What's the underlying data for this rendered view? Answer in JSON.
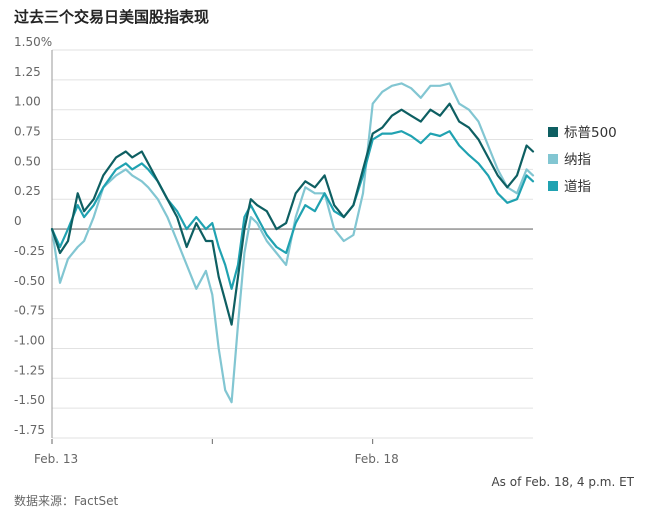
{
  "title": "过去三个交易日美国股指表现",
  "note": "As of Feb. 18, 4 p.m. ET",
  "source": "数据来源：FactSet",
  "colors": {
    "sp500": "#0e5f62",
    "nasdaq": "#82c6d2",
    "dow": "#20a2b1",
    "zero": "#888888",
    "grid": "#e2e2e2"
  },
  "chart_data": {
    "type": "line",
    "title": "过去三个交易日美国股指表现",
    "xlabel": "",
    "ylabel": "",
    "ylim": [
      -1.75,
      1.5
    ],
    "yticks": [
      {
        "value": 1.5,
        "label": "1.50%"
      },
      {
        "value": 1.25,
        "label": "1.25"
      },
      {
        "value": 1.0,
        "label": "1.00"
      },
      {
        "value": 0.75,
        "label": "0.75"
      },
      {
        "value": 0.5,
        "label": "0.50"
      },
      {
        "value": 0.25,
        "label": "0.25"
      },
      {
        "value": 0,
        "label": "0"
      },
      {
        "value": -0.25,
        "label": "-0.25"
      },
      {
        "value": -0.5,
        "label": "-0.50"
      },
      {
        "value": -0.75,
        "label": "-0.75"
      },
      {
        "value": -1.0,
        "label": "-1.00"
      },
      {
        "value": -1.25,
        "label": "-1.25"
      },
      {
        "value": -1.5,
        "label": "-1.50"
      },
      {
        "value": -1.75,
        "label": "-1.75"
      }
    ],
    "xlim": [
      0,
      3
    ],
    "xticks": [
      {
        "value": 0,
        "label": "Feb. 13"
      },
      {
        "value": 1,
        "label": ""
      },
      {
        "value": 2,
        "label": "Feb. 18"
      }
    ],
    "grid": true,
    "legend": "right",
    "series": [
      {
        "name": "标普500",
        "color_key": "sp500",
        "x": [
          0,
          0.05,
          0.1,
          0.16,
          0.2,
          0.26,
          0.32,
          0.4,
          0.46,
          0.5,
          0.56,
          0.6,
          0.66,
          0.72,
          0.78,
          0.84,
          0.9,
          0.96,
          1.0,
          1.04,
          1.08,
          1.12,
          1.16,
          1.2,
          1.24,
          1.28,
          1.34,
          1.4,
          1.46,
          1.52,
          1.58,
          1.64,
          1.7,
          1.76,
          1.82,
          1.88,
          1.94,
          2.0,
          2.06,
          2.12,
          2.18,
          2.24,
          2.3,
          2.36,
          2.42,
          2.48,
          2.54,
          2.6,
          2.66,
          2.72,
          2.78,
          2.84,
          2.9,
          2.96,
          3.0
        ],
        "y": [
          0.0,
          -0.2,
          -0.1,
          0.3,
          0.15,
          0.25,
          0.45,
          0.6,
          0.65,
          0.6,
          0.65,
          0.55,
          0.4,
          0.25,
          0.1,
          -0.15,
          0.05,
          -0.1,
          -0.1,
          -0.4,
          -0.6,
          -0.8,
          -0.4,
          0.0,
          0.25,
          0.2,
          0.15,
          0.0,
          0.05,
          0.3,
          0.4,
          0.35,
          0.45,
          0.2,
          0.1,
          0.2,
          0.5,
          0.8,
          0.85,
          0.95,
          1.0,
          0.95,
          0.9,
          1.0,
          0.95,
          1.05,
          0.9,
          0.85,
          0.75,
          0.6,
          0.45,
          0.35,
          0.45,
          0.7,
          0.65
        ]
      },
      {
        "name": "纳指",
        "color_key": "nasdaq",
        "x": [
          0,
          0.05,
          0.1,
          0.16,
          0.2,
          0.26,
          0.32,
          0.4,
          0.46,
          0.5,
          0.56,
          0.6,
          0.66,
          0.72,
          0.78,
          0.84,
          0.9,
          0.96,
          1.0,
          1.04,
          1.08,
          1.12,
          1.16,
          1.2,
          1.24,
          1.28,
          1.34,
          1.4,
          1.46,
          1.52,
          1.58,
          1.64,
          1.7,
          1.76,
          1.82,
          1.88,
          1.94,
          2.0,
          2.06,
          2.12,
          2.18,
          2.24,
          2.3,
          2.36,
          2.42,
          2.48,
          2.54,
          2.6,
          2.66,
          2.72,
          2.78,
          2.84,
          2.9,
          2.96,
          3.0
        ],
        "y": [
          0.0,
          -0.45,
          -0.25,
          -0.15,
          -0.1,
          0.1,
          0.35,
          0.45,
          0.5,
          0.45,
          0.4,
          0.35,
          0.25,
          0.1,
          -0.1,
          -0.3,
          -0.5,
          -0.35,
          -0.55,
          -1.0,
          -1.35,
          -1.45,
          -0.8,
          -0.2,
          0.1,
          0.05,
          -0.1,
          -0.2,
          -0.3,
          0.1,
          0.35,
          0.3,
          0.3,
          0.0,
          -0.1,
          -0.05,
          0.3,
          1.05,
          1.15,
          1.2,
          1.22,
          1.18,
          1.1,
          1.2,
          1.2,
          1.22,
          1.05,
          1.0,
          0.9,
          0.7,
          0.5,
          0.35,
          0.3,
          0.5,
          0.45
        ]
      },
      {
        "name": "道指",
        "color_key": "dow",
        "x": [
          0,
          0.05,
          0.1,
          0.16,
          0.2,
          0.26,
          0.32,
          0.4,
          0.46,
          0.5,
          0.56,
          0.6,
          0.66,
          0.72,
          0.78,
          0.84,
          0.9,
          0.96,
          1.0,
          1.04,
          1.08,
          1.12,
          1.16,
          1.2,
          1.24,
          1.28,
          1.34,
          1.4,
          1.46,
          1.52,
          1.58,
          1.64,
          1.7,
          1.76,
          1.82,
          1.88,
          1.94,
          2.0,
          2.06,
          2.12,
          2.18,
          2.24,
          2.3,
          2.36,
          2.42,
          2.48,
          2.54,
          2.6,
          2.66,
          2.72,
          2.78,
          2.84,
          2.9,
          2.96,
          3.0
        ],
        "y": [
          0.0,
          -0.15,
          0.0,
          0.2,
          0.1,
          0.2,
          0.35,
          0.5,
          0.55,
          0.5,
          0.55,
          0.5,
          0.4,
          0.25,
          0.15,
          0.0,
          0.1,
          0.0,
          0.05,
          -0.15,
          -0.3,
          -0.5,
          -0.3,
          0.1,
          0.2,
          0.1,
          -0.05,
          -0.15,
          -0.2,
          0.05,
          0.2,
          0.15,
          0.3,
          0.15,
          0.1,
          0.2,
          0.45,
          0.75,
          0.8,
          0.8,
          0.82,
          0.78,
          0.72,
          0.8,
          0.78,
          0.82,
          0.7,
          0.62,
          0.55,
          0.45,
          0.3,
          0.22,
          0.25,
          0.45,
          0.4
        ]
      }
    ]
  }
}
